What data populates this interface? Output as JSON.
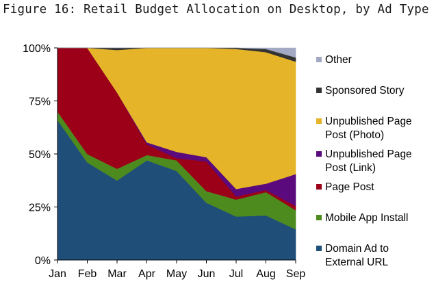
{
  "chart_data": {
    "type": "area",
    "stacked": true,
    "normalized": true,
    "title": "Figure 16: Retail Budget Allocation on Desktop, by Ad Type",
    "xlabel": "",
    "ylabel": "",
    "categories": [
      "Jan",
      "Feb",
      "Mar",
      "Apr",
      "May",
      "Jun",
      "Jul",
      "Aug",
      "Sep"
    ],
    "ylim": [
      0,
      100
    ],
    "yticks": [
      0,
      25,
      50,
      75,
      100
    ],
    "ytick_labels": [
      "0%",
      "25%",
      "50%",
      "75%",
      "100%"
    ],
    "grid": false,
    "legend_position": "right",
    "series": [
      {
        "name": "Domain Ad to External URL",
        "color": "#1f4e79",
        "values": [
          66,
          46,
          37.5,
          47,
          42,
          27,
          20.5,
          21,
          14.5
        ]
      },
      {
        "name": "Mobile App Install",
        "color": "#4e8b1f",
        "values": [
          4,
          4,
          5.5,
          2.5,
          5,
          5.5,
          8,
          11,
          9
        ]
      },
      {
        "name": "Page Post",
        "color": "#9b0018",
        "values": [
          30,
          50,
          36,
          5,
          1,
          14,
          1.5,
          1,
          2
        ]
      },
      {
        "name": "Unpublished Page Post (Link)",
        "color": "#5a0a7c",
        "values": [
          0,
          0,
          0,
          1,
          3,
          2,
          3.5,
          3,
          15
        ]
      },
      {
        "name": "Unpublished Page Post (Photo)",
        "color": "#e5b428",
        "values": [
          0,
          0,
          20,
          44.5,
          49,
          51.5,
          66,
          62,
          53
        ]
      },
      {
        "name": "Sponsored Story",
        "color": "#333333",
        "values": [
          0,
          0,
          1,
          0,
          0,
          0,
          0.5,
          1.5,
          2
        ]
      },
      {
        "name": "Other",
        "color": "#a3a9c2",
        "values": [
          0,
          0,
          0,
          0,
          0,
          0,
          0,
          0.5,
          4.5
        ]
      }
    ],
    "legend_order": [
      "Other",
      "Sponsored Story",
      "Unpublished Page Post (Photo)",
      "Unpublished Page Post (Link)",
      "Page Post",
      "Mobile App Install",
      "Domain Ad to External URL"
    ],
    "legend_lines": [
      [
        "Other"
      ],
      [
        "Sponsored Story"
      ],
      [
        "Unpublished Page",
        "Post (Photo)"
      ],
      [
        "Unpublished Page",
        "Post (Link)"
      ],
      [
        "Page Post"
      ],
      [
        "Mobile App Install"
      ],
      [
        "Domain Ad to",
        "External URL"
      ]
    ]
  }
}
